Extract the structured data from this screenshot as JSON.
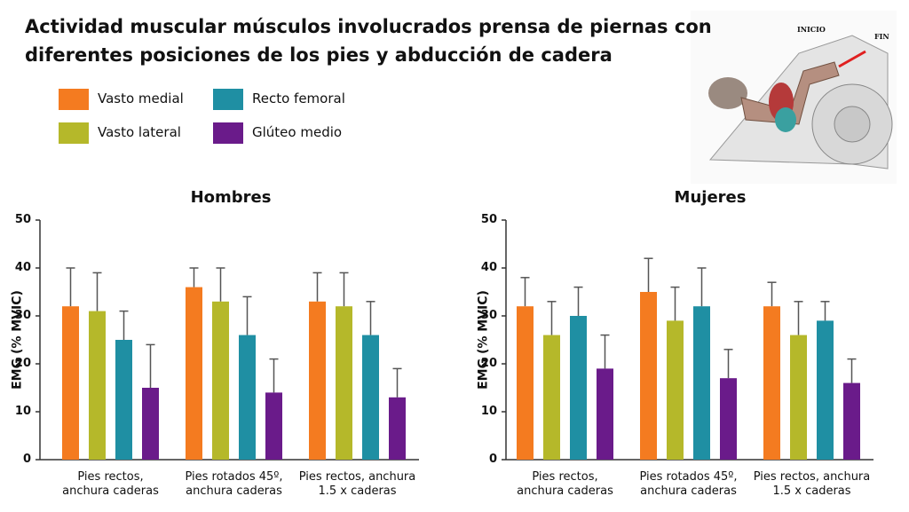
{
  "title": "Actividad muscular músculos involucrados prensa de piernas con\ndiferentes posiciones de los pies y abducción de cadera",
  "illustration": {
    "labels": [
      "INICIO",
      "FIN"
    ]
  },
  "chart_data": [
    {
      "type": "bar",
      "title": "Hombres",
      "y_label": "EMG (% MVIC)",
      "categories": [
        "Pies rectos,\nanchura caderas",
        "Pies rotados 45º,\nanchura caderas",
        "Pies rectos, anchura\n1.5 x caderas"
      ],
      "ylim": [
        0,
        50
      ],
      "yticks": [
        0,
        10,
        20,
        30,
        40,
        50
      ],
      "series": [
        {
          "name": "Vasto medial",
          "color": "#f47b20",
          "values": [
            32,
            36,
            33
          ],
          "errors": [
            8,
            4,
            6
          ]
        },
        {
          "name": "Vasto lateral",
          "color": "#b5b82a",
          "values": [
            31,
            33,
            32
          ],
          "errors": [
            8,
            7,
            7
          ]
        },
        {
          "name": "Recto femoral",
          "color": "#1f8fa3",
          "values": [
            25,
            26,
            26
          ],
          "errors": [
            6,
            8,
            7
          ]
        },
        {
          "name": "Glúteo medio",
          "color": "#6a1b8a",
          "values": [
            15,
            14,
            13
          ],
          "errors": [
            9,
            7,
            6
          ]
        }
      ]
    },
    {
      "type": "bar",
      "title": "Mujeres",
      "y_label": "EMG (% MVIC)",
      "categories": [
        "Pies rectos,\nanchura caderas",
        "Pies rotados 45º,\nanchura caderas",
        "Pies rectos, anchura\n1.5 x caderas"
      ],
      "ylim": [
        0,
        50
      ],
      "yticks": [
        0,
        10,
        20,
        30,
        40,
        50
      ],
      "series": [
        {
          "color": "#f47b20",
          "values": [
            32,
            35,
            32
          ],
          "errors": [
            6,
            7,
            5
          ]
        },
        {
          "color": "#b5b82a",
          "values": [
            26,
            29,
            26
          ],
          "errors": [
            7,
            7,
            7
          ]
        },
        {
          "color": "#1f8fa3",
          "values": [
            30,
            32,
            29
          ],
          "errors": [
            6,
            8,
            4
          ]
        },
        {
          "color": "#6a1b8a",
          "values": [
            19,
            17,
            16
          ],
          "errors": [
            7,
            6,
            5
          ]
        }
      ]
    }
  ]
}
